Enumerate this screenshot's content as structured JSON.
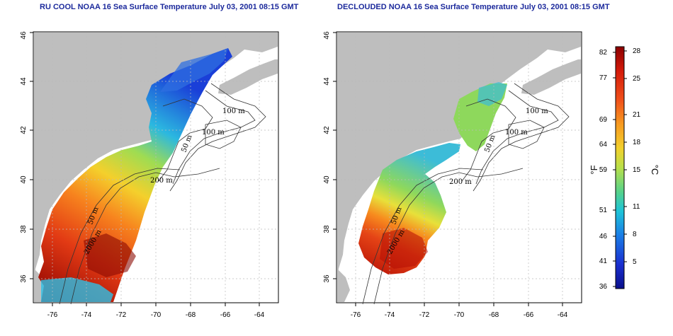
{
  "maps": [
    {
      "title": "RU COOL NOAA 16 Sea Surface Temperature July 03, 2001 08:15 GMT",
      "x_ticks": [
        "-76",
        "-74",
        "-72",
        "-70",
        "-68",
        "-66",
        "-64"
      ],
      "y_ticks": [
        "36",
        "38",
        "40",
        "42",
        "44",
        "46"
      ],
      "contour_labels": [
        "100 m",
        "100 m",
        "50 m",
        "200 m",
        "50 m",
        "2000 m"
      ]
    },
    {
      "title": "DECLOUDED NOAA 16 Sea Surface Temperature July 03, 2001 08:15 GMT",
      "x_ticks": [
        "-76",
        "-74",
        "-72",
        "-70",
        "-68",
        "-66",
        "-64"
      ],
      "y_ticks": [
        "36",
        "38",
        "40",
        "42",
        "44",
        "46"
      ],
      "contour_labels": [
        "100 m",
        "100 m",
        "50 m",
        "200 m",
        "50 m",
        "2000 m"
      ]
    }
  ],
  "colorbar": {
    "fahrenheit_labels": [
      "82",
      "77",
      "69",
      "64",
      "59",
      "51",
      "46",
      "41",
      "36"
    ],
    "celsius_labels": [
      "28",
      "25",
      "21",
      "18",
      "15",
      "11",
      "8",
      "5"
    ],
    "fahrenheit_unit": "°F",
    "celsius_unit": "°C",
    "colors": [
      "#8b0000",
      "#d41a0a",
      "#f0501a",
      "#f79a20",
      "#f2d02c",
      "#b9e04a",
      "#56d28a",
      "#1ec4d8",
      "#1a7de6",
      "#1a2fd0",
      "#0a0f8a"
    ]
  },
  "colors": {
    "land": "#bebebe",
    "title": "#1c2a9c",
    "grid": "#bbbbbb"
  }
}
